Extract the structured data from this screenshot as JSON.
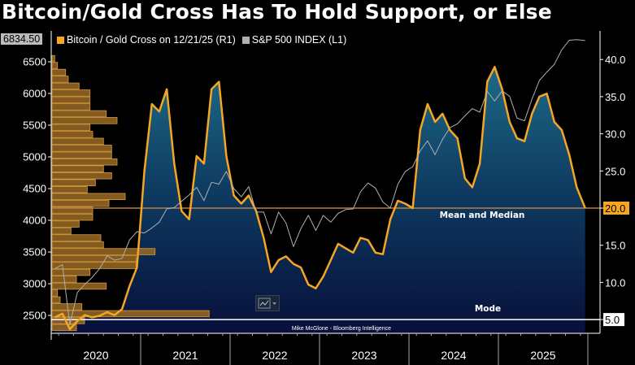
{
  "title": "Bitcoin/Gold Cross Has To Hold Support, or Else",
  "legend": {
    "last_value_label": "6834.50",
    "items": [
      {
        "label": "Bitcoin / Gold Cross on 12/21/25 (R1)",
        "color": "#f5a623"
      },
      {
        "label": "S&P 500 INDEX (L1)",
        "color": "#b0b0b0"
      }
    ]
  },
  "annotations": {
    "mean_median": "Mean and Median",
    "mode": "Mode",
    "credit": "Mike McGlone - Bloomberg Intelligence",
    "mean_value_label": "20.0",
    "mode_value_label": "5.0"
  },
  "chart_data": {
    "type": "line",
    "x_ticks": [
      "2020",
      "2021",
      "2022",
      "2023",
      "2024",
      "2025"
    ],
    "left_axis": {
      "ticks": [
        "2500",
        "3000",
        "3500",
        "4000",
        "4500",
        "5000",
        "5500",
        "6000",
        "6500"
      ],
      "range": [
        2250,
        6950
      ]
    },
    "right_axis": {
      "ticks": [
        "5.0",
        "10.0",
        "15.0",
        "20.0",
        "25.0",
        "30.0",
        "35.0",
        "40.0"
      ],
      "range": [
        3.0,
        44.5
      ]
    },
    "reference_lines": [
      {
        "label": "Mean and Median",
        "value": 20.0,
        "axis": "right",
        "color": "#b8803e"
      },
      {
        "label": "Mode",
        "value": 5.0,
        "axis": "right",
        "color": "#ffffff"
      }
    ],
    "series": [
      {
        "name": "Bitcoin / Gold Cross on 12/21/25 (R1)",
        "axis": "right",
        "color": "#f5a623",
        "x": [
          "2020-01",
          "2020-02",
          "2020-03",
          "2020-04",
          "2020-05",
          "2020-06",
          "2020-07",
          "2020-08",
          "2020-09",
          "2020-10",
          "2020-11",
          "2020-12",
          "2021-01",
          "2021-02",
          "2021-03",
          "2021-04",
          "2021-05",
          "2021-06",
          "2021-07",
          "2021-08",
          "2021-09",
          "2021-10",
          "2021-11",
          "2021-12",
          "2022-01",
          "2022-02",
          "2022-03",
          "2022-04",
          "2022-05",
          "2022-06",
          "2022-07",
          "2022-08",
          "2022-09",
          "2022-10",
          "2022-11",
          "2022-12",
          "2023-01",
          "2023-02",
          "2023-03",
          "2023-04",
          "2023-05",
          "2023-06",
          "2023-07",
          "2023-08",
          "2023-09",
          "2023-10",
          "2023-11",
          "2023-12",
          "2024-01",
          "2024-02",
          "2024-03",
          "2024-04",
          "2024-05",
          "2024-06",
          "2024-07",
          "2024-08",
          "2024-09",
          "2024-10",
          "2024-11",
          "2024-12",
          "2025-01",
          "2025-02",
          "2025-03",
          "2025-04",
          "2025-05",
          "2025-06",
          "2025-07",
          "2025-08",
          "2025-09",
          "2025-10",
          "2025-11",
          "2025-12-21"
        ],
        "values": [
          5.3,
          5.8,
          3.7,
          4.8,
          5.6,
          5.3,
          5.5,
          6.0,
          5.6,
          6.4,
          9.5,
          12.0,
          25.0,
          34.0,
          33.0,
          36.0,
          26.0,
          19.6,
          18.5,
          27.0,
          26.0,
          36.0,
          37.0,
          27.0,
          21.7,
          20.6,
          21.7,
          19.6,
          16.0,
          11.4,
          13.0,
          13.5,
          12.5,
          12.0,
          9.7,
          9.2,
          10.8,
          13.0,
          15.2,
          14.6,
          14.0,
          16.0,
          15.7,
          14.0,
          13.8,
          18.5,
          21.0,
          20.6,
          20.0,
          30.5,
          34.0,
          31.6,
          32.7,
          30.5,
          29.4,
          24.0,
          22.8,
          26.0,
          37.0,
          39.0,
          36.0,
          31.6,
          29.4,
          29.0,
          32.7,
          35.0,
          35.4,
          31.6,
          30.5,
          27.2,
          22.8,
          20.0
        ]
      },
      {
        "name": "S&P 500 INDEX (L1)",
        "axis": "left",
        "color": "#b0b0b0",
        "x": [
          "2020-01",
          "2020-02",
          "2020-03",
          "2020-04",
          "2020-05",
          "2020-06",
          "2020-07",
          "2020-08",
          "2020-09",
          "2020-10",
          "2020-11",
          "2020-12",
          "2021-01",
          "2021-02",
          "2021-03",
          "2021-04",
          "2021-05",
          "2021-06",
          "2021-07",
          "2021-08",
          "2021-09",
          "2021-10",
          "2021-11",
          "2021-12",
          "2022-01",
          "2022-02",
          "2022-03",
          "2022-04",
          "2022-05",
          "2022-06",
          "2022-07",
          "2022-08",
          "2022-09",
          "2022-10",
          "2022-11",
          "2022-12",
          "2023-01",
          "2023-02",
          "2023-03",
          "2023-04",
          "2023-05",
          "2023-06",
          "2023-07",
          "2023-08",
          "2023-09",
          "2023-10",
          "2023-11",
          "2023-12",
          "2024-01",
          "2024-02",
          "2024-03",
          "2024-04",
          "2024-05",
          "2024-06",
          "2024-07",
          "2024-08",
          "2024-09",
          "2024-10",
          "2024-11",
          "2024-12",
          "2025-01",
          "2025-02",
          "2025-03",
          "2025-04",
          "2025-05",
          "2025-06",
          "2025-07",
          "2025-08",
          "2025-09",
          "2025-10",
          "2025-11",
          "2025-12-21"
        ],
        "values": [
          3240,
          3300,
          2350,
          2860,
          2990,
          3100,
          3240,
          3440,
          3370,
          3400,
          3690,
          3820,
          3800,
          3880,
          3970,
          4180,
          4200,
          4300,
          4400,
          4520,
          4310,
          4600,
          4570,
          4770,
          4500,
          4370,
          4530,
          4130,
          4130,
          3785,
          4130,
          3955,
          3585,
          3870,
          4080,
          3840,
          4077,
          3970,
          4109,
          4169,
          4180,
          4450,
          4589,
          4508,
          4288,
          4194,
          4568,
          4770,
          4846,
          5096,
          5254,
          5036,
          5278,
          5460,
          5522,
          5648,
          5762,
          5705,
          6032,
          5882,
          6041,
          5955,
          5612,
          5569,
          5912,
          6205,
          6339,
          6460,
          6688,
          6840,
          6849,
          6834.5
        ]
      }
    ],
    "histogram": {
      "axis": "left",
      "range": [
        2250,
        6600
      ],
      "order": "top-to-bottom",
      "color": "#9a6a24",
      "counts": [
        1,
        2,
        5,
        6,
        10,
        14,
        14,
        14,
        20,
        24,
        14,
        15,
        19,
        22,
        22,
        24,
        19,
        22,
        16,
        13,
        27,
        21,
        15,
        15,
        10,
        7,
        18,
        19,
        38,
        31,
        31,
        14,
        9,
        20,
        2,
        3,
        11,
        58,
        12,
        9
      ]
    },
    "grid": false
  }
}
